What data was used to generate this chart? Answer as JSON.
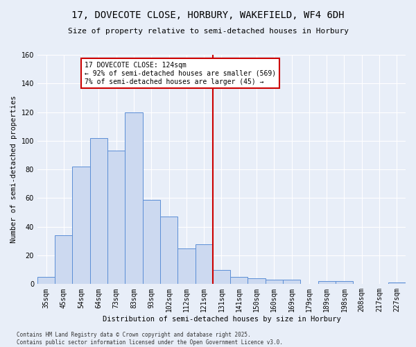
{
  "title": "17, DOVECOTE CLOSE, HORBURY, WAKEFIELD, WF4 6DH",
  "subtitle": "Size of property relative to semi-detached houses in Horbury",
  "xlabel": "Distribution of semi-detached houses by size in Horbury",
  "ylabel": "Number of semi-detached properties",
  "categories": [
    "35sqm",
    "45sqm",
    "54sqm",
    "64sqm",
    "73sqm",
    "83sqm",
    "93sqm",
    "102sqm",
    "112sqm",
    "121sqm",
    "131sqm",
    "141sqm",
    "150sqm",
    "160sqm",
    "169sqm",
    "179sqm",
    "189sqm",
    "198sqm",
    "208sqm",
    "217sqm",
    "227sqm"
  ],
  "values": [
    5,
    34,
    82,
    102,
    93,
    120,
    59,
    47,
    25,
    28,
    10,
    5,
    4,
    3,
    3,
    0,
    2,
    2,
    0,
    0,
    1
  ],
  "bar_color": "#ccd9f0",
  "bar_edge_color": "#5b8ed6",
  "annotation_title": "17 DOVECOTE CLOSE: 124sqm",
  "annotation_line1": "← 92% of semi-detached houses are smaller (569)",
  "annotation_line2": "7% of semi-detached houses are larger (45) →",
  "annotation_box_color": "#ffffff",
  "annotation_border_color": "#cc0000",
  "vline_color": "#cc0000",
  "vline_x": 9.5,
  "ylim": [
    0,
    160
  ],
  "yticks": [
    0,
    20,
    40,
    60,
    80,
    100,
    120,
    140,
    160
  ],
  "footer1": "Contains HM Land Registry data © Crown copyright and database right 2025.",
  "footer2": "Contains public sector information licensed under the Open Government Licence v3.0.",
  "bg_color": "#e8eef8",
  "plot_bg_color": "#e8eef8",
  "title_fontsize": 10,
  "subtitle_fontsize": 8,
  "axis_label_fontsize": 7.5,
  "tick_fontsize": 7,
  "annotation_fontsize": 7
}
